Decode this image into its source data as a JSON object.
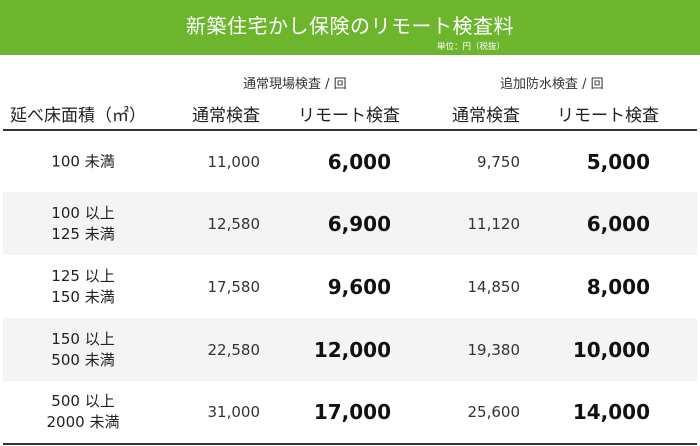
{
  "title": "新築住宅かし保険のリモート検査料",
  "unit_note": "単位：円（税抜）",
  "groups": [
    "通常現場検査 / 回",
    "追加防水検査 / 回"
  ],
  "headers": [
    "延べ床面積（㎡）",
    "通常検査",
    "リモート検査",
    "通常検査",
    "リモート検査"
  ],
  "rows": [
    {
      "area": [
        "100 未満"
      ],
      "onsite_normal": "11,000",
      "onsite_remote": "6,000",
      "water_normal": "9,750",
      "water_remote": "5,000"
    },
    {
      "area": [
        "100 以上",
        "125 未満"
      ],
      "onsite_normal": "12,580",
      "onsite_remote": "6,900",
      "water_normal": "11,120",
      "water_remote": "6,000"
    },
    {
      "area": [
        "125 以上",
        "150 未満"
      ],
      "onsite_normal": "17,580",
      "onsite_remote": "9,600",
      "water_normal": "14,850",
      "water_remote": "8,000"
    },
    {
      "area": [
        "150 以上",
        "500 未満"
      ],
      "onsite_normal": "22,580",
      "onsite_remote": "12,000",
      "water_normal": "19,380",
      "water_remote": "10,000"
    },
    {
      "area": [
        "500 以上",
        "2000 未満"
      ],
      "onsite_normal": "31,000",
      "onsite_remote": "17,000",
      "water_normal": "25,600",
      "water_remote": "14,000"
    }
  ],
  "colors": {
    "banner": "#6cb52d",
    "alt_row": "#f4f4f4"
  }
}
